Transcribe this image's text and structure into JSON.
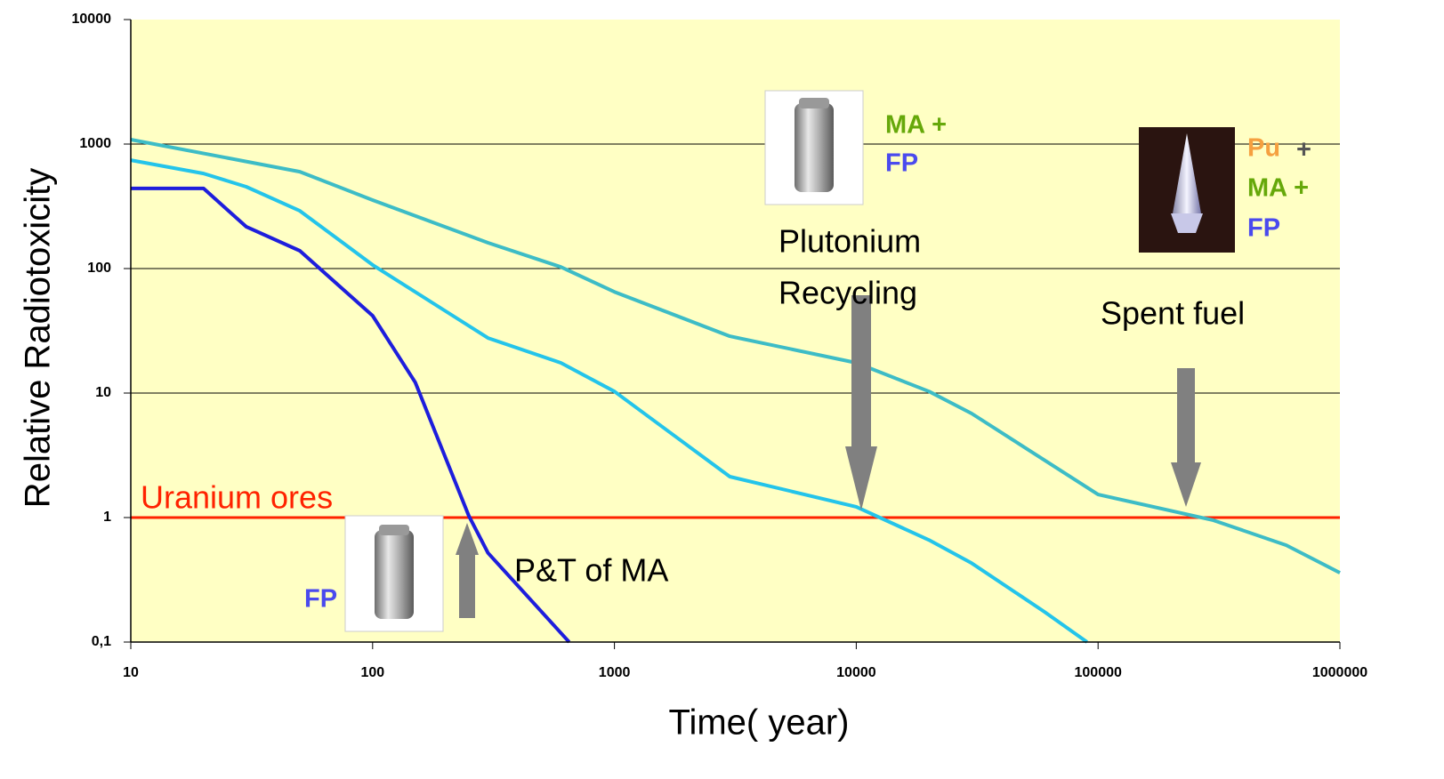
{
  "chart_data": {
    "type": "line",
    "x_label": "Time( year)",
    "y_label": "Relative Radiotoxicity",
    "log_x": true,
    "log_y": true,
    "grid": true,
    "xlim": [
      10,
      1000000
    ],
    "xticks": [
      10,
      100,
      1000,
      10000,
      100000,
      1000000
    ],
    "ylim": [
      0.1,
      10000
    ],
    "yticks": [
      {
        "value": 0.1,
        "label": "0,1"
      },
      1,
      10,
      100,
      1000,
      10000
    ],
    "series": [
      {
        "color": "#3dbcc6",
        "x": [
          10,
          50,
          100,
          300,
          600,
          1000,
          3000,
          10000,
          20000,
          30000,
          100000,
          300000,
          600000,
          1000000
        ],
        "values": [
          1086,
          600,
          355,
          161,
          103,
          65,
          28.6,
          17.5,
          10.3,
          6.85,
          1.53,
          0.95,
          0.6,
          0.36
        ]
      },
      {
        "color": "#24c4ea",
        "x": [
          10,
          20,
          30,
          50,
          100,
          300,
          600,
          1000,
          3000,
          10000,
          20000,
          30000,
          60000,
          90000
        ],
        "values": [
          743,
          580,
          454,
          291,
          107,
          27.7,
          17.5,
          10.3,
          2.13,
          1.22,
          0.66,
          0.43,
          0.175,
          0.1
        ]
      },
      {
        "color": "#1e1edc",
        "x": [
          10,
          20,
          30,
          50,
          100,
          150,
          250,
          300,
          650
        ],
        "values": [
          440,
          440,
          217,
          139,
          41.8,
          12.2,
          1.03,
          0.52,
          0.1
        ]
      }
    ],
    "reference_lines": [
      {
        "label": "Uranium ores",
        "value": 1,
        "color": "#ff2200"
      }
    ],
    "annotations": [
      "MA +",
      "FP",
      "Pu",
      "+",
      "MA +",
      "FP",
      "Plutonium",
      "Recycling",
      "Spent fuel",
      "P&T of MA",
      "FP"
    ]
  }
}
